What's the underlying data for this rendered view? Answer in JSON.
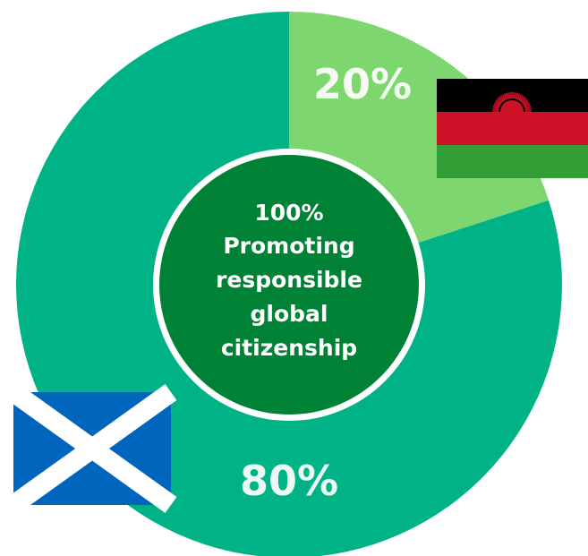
{
  "chart_data": {
    "type": "pie",
    "categories": [
      "Malawi",
      "Scotland"
    ],
    "values": [
      20,
      80
    ],
    "value_labels": [
      "20%",
      "80%"
    ],
    "slice_colors": [
      "#7dd66e",
      "#00b386"
    ],
    "center_text": [
      "100%",
      "Promoting",
      "responsible",
      "global",
      "citizenship"
    ],
    "center_color": "#008236",
    "legend": "flag images next to slices",
    "start_angle": "12 o'clock, clockwise"
  },
  "flags": {
    "malawi": {
      "icon": "malawi-flag-icon",
      "stripes": [
        "#000000",
        "#ce1126",
        "#339e35"
      ],
      "sun_color": "#ce1126"
    },
    "scotland": {
      "icon": "scotland-flag-icon",
      "field": "#0065bd",
      "saltire": "#ffffff"
    }
  }
}
